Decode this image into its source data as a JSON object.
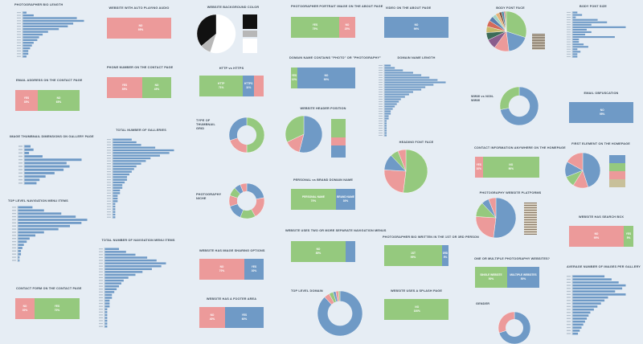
{
  "colors": {
    "bg": "#e6edf4",
    "green": "#95c97e",
    "pink": "#ec9a9a",
    "blue": "#6f9ac6",
    "white": "#ffffff",
    "gray": "#b7b7b7",
    "black": "#111111"
  },
  "titles": {
    "photographer_bio_length": "PHOTOGRAPHER BIO LENGTH",
    "auto_playing_audio": "WEBSITE WITH AUTO PLAYING AUDIO",
    "background_color": "WEBSITE BACKGROUND COLOR",
    "portrait_image": "PHOTOGRAPHER PORTRAIT IMAGE ON THE ABOUT PAGE",
    "video_about": "VIDEO ON THE ABOUT PAGE",
    "body_font_face": "BODY FONT FACE",
    "body_font_size": "BODY FONT SIZE",
    "email_address": "EMAIL ADDRESS ON THE CONTACT PAGE",
    "phone_number": "PHONE NUMBER ON THE CONTACT PAGE",
    "http_https": "HTTP vs HTTPS",
    "domain_contains": "DOMAIN NAME CONTAINS \"PHOTO\" OR \"PHOTOGRAPHY\"",
    "domain_length": "DOMAIN NAME LENGTH",
    "www_nonwww": "WWW vs NON-WWW",
    "email_obfuscation": "EMAIL OBFUSCATION",
    "header_position": "WEBSITE HEADER POSITION",
    "thumbnail_dimensions": "IMAGE THUMBNAIL DIMENSIONS ON GALLERY PAGE",
    "total_galleries": "TOTAL NUMBER OF GALLERIES",
    "type_of_thumbnail": "TYPE OF THUMBNAIL GRID",
    "heading_font": "HEADING FONT FACE",
    "contact_anywhere": "CONTACT INFORMATION ANYWHERE ON THE HOMEPAGE",
    "first_element": "FIRST ELEMENT ON THE HOMEPAGE",
    "personal_brand": "PERSONAL vs BRAND DOMAIN NAME",
    "top_nav_items": "TOP LEVEL NAVIGATION MENU ITEMS",
    "photography_niche": "PHOTOGRAPHY NICHE",
    "platforms": "PHOTOGRAPHY WEBSITE PLATFORMS",
    "search_box": "WEBSITE HAS SEARCH BOX",
    "total_nav_items": "TOTAL NUMBER OF NAVIGATION MENU ITEMS",
    "image_sharing": "WEBSITE HAS IMAGE SHARING OPTIONS",
    "two_menus": "WEBSITE USES TWO OR MORE SEPARATE NAVIGATION MENUS",
    "bio_first_third": "PHOTOGRAPHER BIO WRITTEN IN THE 1ST OR 3RD PERSON",
    "one_or_multiple": "ONE OR MULTIPLE PHOTOGRAPHY WEBSITES?",
    "avg_images": "AVERAGE NUMBER OF IMAGES PER GALLERY",
    "contact_form": "CONTACT FORM ON THE CONTACT PAGE",
    "footer_area": "WEBSITE HAS A FOOTER AREA",
    "tld": "TOP LEVEL DOMAIN",
    "splash_page": "WEBSITE USES A SPLASH PAGE",
    "gender": "GENDER"
  },
  "stack_labels": {
    "auto_audio": [
      {
        "l": "YES",
        "v": "5%"
      },
      {
        "l": "NO",
        "v": "95%"
      }
    ],
    "portrait": [
      {
        "l": "YES",
        "v": "75%"
      },
      {
        "l": "NO",
        "v": "25%"
      }
    ],
    "video": [
      {
        "l": "NO",
        "v": "96%"
      }
    ],
    "email": [
      {
        "l": "YES",
        "v": "35%"
      },
      {
        "l": "NO",
        "v": "65%"
      }
    ],
    "phone": [
      {
        "l": "YES",
        "v": "55%"
      },
      {
        "l": "NO",
        "v": "45%"
      }
    ],
    "https": [
      {
        "l": "HTTP",
        "v": "71%"
      },
      {
        "l": "HTTPS",
        "v": "11%"
      },
      {
        "l": "",
        "v": ""
      }
    ],
    "domain_contains": [
      {
        "l": "YES",
        "v": "10%"
      },
      {
        "l": "NO",
        "v": "90%"
      }
    ],
    "obfuscation": [
      {
        "l": "YES",
        "v": "5%"
      },
      {
        "l": "NO",
        "v": "95%"
      }
    ],
    "contact_anywhere": [
      {
        "l": "YES",
        "v": "10%"
      },
      {
        "l": "NO",
        "v": "90%"
      }
    ],
    "personal": [
      {
        "l": "PERSONAL NAME",
        "v": "70%"
      },
      {
        "l": "BRAND NAME",
        "v": "30%"
      }
    ],
    "search": [
      {
        "l": "NO",
        "v": "95%"
      },
      {
        "l": "YES",
        "v": "5%"
      }
    ],
    "sharing": [
      {
        "l": "NO",
        "v": "70%"
      },
      {
        "l": "YES",
        "v": "30%"
      }
    ],
    "two_menus": [
      {
        "l": "NO",
        "v": "85%"
      },
      {
        "l": "",
        "v": ""
      }
    ],
    "bio_person": [
      {
        "l": "1ST",
        "v": "95%"
      },
      {
        "l": "3RD",
        "v": "5%"
      }
    ],
    "one_multiple": [
      {
        "l": "SINGLE WEBSITE",
        "v": "50%"
      },
      {
        "l": "MULTIPLE WEBSITES",
        "v": "50%"
      }
    ],
    "contact_form": [
      {
        "l": "NO",
        "v": "30%"
      },
      {
        "l": "YES",
        "v": "70%"
      }
    ],
    "footer": [
      {
        "l": "NO",
        "v": "40%"
      },
      {
        "l": "YES",
        "v": "60%"
      }
    ],
    "splash": [
      {
        "l": "YES",
        "v": "0%"
      },
      {
        "l": "NO",
        "v": "100%"
      }
    ]
  },
  "chart_data": [
    {
      "id": "bio_length",
      "type": "bar",
      "orientation": "horizontal",
      "values": [
        2,
        6,
        30,
        34,
        28,
        25,
        20,
        14,
        11,
        9,
        8,
        6,
        5,
        4,
        3,
        3,
        2
      ]
    },
    {
      "id": "body_font_size",
      "type": "bar",
      "orientation": "horizontal",
      "values": [
        3,
        6,
        2,
        16,
        22,
        12,
        34,
        9,
        12,
        8,
        27,
        4,
        4,
        7,
        10,
        3,
        5,
        3,
        3
      ]
    },
    {
      "id": "thumb_dims",
      "type": "bar",
      "orientation": "horizontal",
      "values": [
        4,
        6,
        3,
        12,
        38,
        28,
        30,
        26,
        20,
        14,
        10,
        8
      ]
    },
    {
      "id": "galleries",
      "type": "bar",
      "orientation": "horizontal",
      "values": [
        8,
        10,
        12,
        18,
        26,
        24,
        20,
        16,
        14,
        12,
        10,
        9,
        8,
        7,
        6,
        6,
        5,
        4,
        4,
        3,
        3,
        2,
        2,
        2,
        1,
        1,
        1,
        1,
        1,
        1
      ]
    },
    {
      "id": "domain_len",
      "type": "bar",
      "orientation": "horizontal",
      "values": [
        3,
        5,
        9,
        14,
        18,
        22,
        26,
        30,
        24,
        20,
        18,
        14,
        12,
        10,
        8,
        7,
        6,
        5,
        4,
        3,
        3,
        2,
        2,
        1,
        1,
        1,
        1,
        1,
        1,
        1
      ]
    },
    {
      "id": "top_nav",
      "type": "bar",
      "orientation": "horizontal",
      "values": [
        10,
        18,
        30,
        40,
        48,
        44,
        36,
        28,
        18,
        12,
        8,
        6,
        4,
        3,
        2,
        2,
        1,
        1
      ]
    },
    {
      "id": "total_nav",
      "type": "bar",
      "orientation": "horizontal",
      "values": [
        6,
        9,
        13,
        18,
        22,
        26,
        24,
        20,
        16,
        13,
        10,
        8,
        7,
        6,
        5,
        4,
        3,
        3,
        2,
        2,
        2,
        1,
        1,
        1,
        1,
        1,
        1,
        1
      ]
    },
    {
      "id": "avg_images",
      "type": "bar",
      "orientation": "horizontal",
      "values": [
        18,
        22,
        26,
        30,
        28,
        24,
        30,
        20,
        18,
        16,
        14,
        12,
        10,
        9,
        8,
        7,
        6,
        5,
        4,
        3
      ]
    },
    {
      "id": "bg_color",
      "type": "pie",
      "values": [
        55,
        9,
        36
      ]
    },
    {
      "id": "header_pos",
      "type": "pie",
      "values": [
        54,
        14,
        32
      ]
    },
    {
      "id": "www",
      "type": "donut",
      "values": [
        72,
        28
      ]
    },
    {
      "id": "thumb_grid",
      "type": "donut",
      "values": [
        50,
        20,
        30
      ]
    },
    {
      "id": "niche",
      "type": "donut",
      "values": [
        22,
        20,
        14,
        14,
        10,
        8,
        6,
        6
      ]
    },
    {
      "id": "first_element",
      "type": "pie",
      "values": [
        45,
        14,
        10,
        14,
        17
      ]
    },
    {
      "id": "platforms",
      "type": "pie",
      "values": [
        52,
        24,
        12,
        6,
        6
      ]
    },
    {
      "id": "tld",
      "type": "donut",
      "values": [
        88,
        4,
        3,
        2,
        2,
        1
      ]
    },
    {
      "id": "gender",
      "type": "donut",
      "values": [
        70,
        30
      ]
    }
  ]
}
